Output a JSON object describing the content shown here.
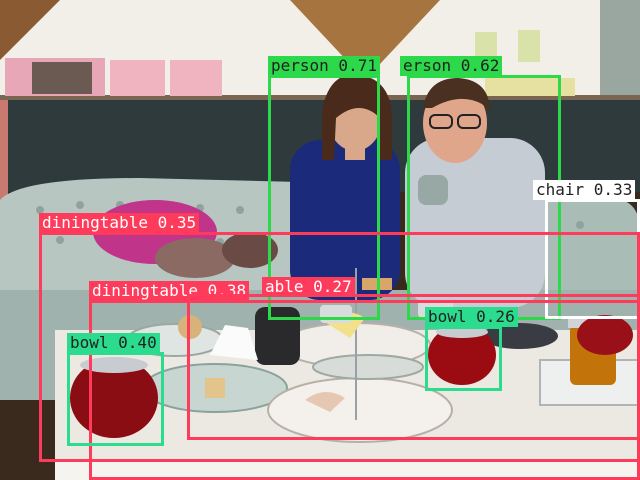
{
  "colors": {
    "person": "#2bd94a",
    "diningtable": "#ff3b5c",
    "bowl": "#2bdc8e",
    "chair": "#ffffff"
  },
  "detections": [
    {
      "label": "person",
      "score": "0.71",
      "text": "person 0.71"
    },
    {
      "label": "person",
      "score": "0.62",
      "text": "erson 0.62"
    },
    {
      "label": "chair",
      "score": "0.33",
      "text": "chair 0.33"
    },
    {
      "label": "diningtable",
      "score": "0.35",
      "text": "diningtable 0.35"
    },
    {
      "label": "diningtable",
      "score": "0.38",
      "text": "diningtable 0.38"
    },
    {
      "label": "diningtable",
      "score": "0.27",
      "text": "able 0.27"
    },
    {
      "label": "bowl",
      "score": "0.40",
      "text": "bowl 0.40"
    },
    {
      "label": "bowl",
      "score": "0.26",
      "text": "bowl 0.26"
    }
  ]
}
